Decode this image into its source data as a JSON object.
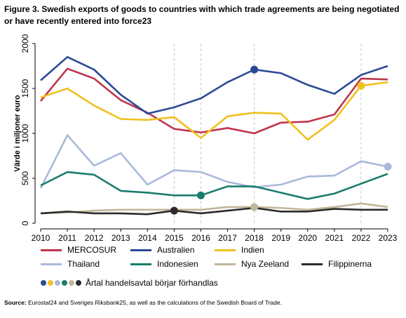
{
  "title": "Figure 3. Swedish exports of goods to countries with which trade agreements are being negotiated or have recently entered into force23",
  "source_label": "Source:",
  "source_text": " Eurostat24 and Sveriges Riksbank25, as well as the calculations of the Swedish Board of Trade.",
  "chart_data": {
    "type": "line",
    "title": "",
    "xlabel": "",
    "ylabel": "Värde i miljoner euro",
    "x": [
      2010,
      2011,
      2012,
      2013,
      2014,
      2015,
      2016,
      2017,
      2018,
      2019,
      2020,
      2021,
      2022,
      2023
    ],
    "xlim": [
      2010,
      2023
    ],
    "ylim": [
      0,
      2000
    ],
    "yticks": [
      0,
      500,
      1000,
      1500,
      2000
    ],
    "vertical_gridlines_at": [
      2015,
      2016,
      2018,
      2022
    ],
    "legend_position": "bottom",
    "series": [
      {
        "name": "MERCOSUR",
        "color": "#c0354b",
        "values": [
          1360,
          1720,
          1610,
          1370,
          1230,
          1050,
          1010,
          1060,
          1000,
          1120,
          1130,
          1210,
          1610,
          1600
        ]
      },
      {
        "name": "Australien",
        "color": "#2a4a96",
        "values": [
          1590,
          1850,
          1710,
          1430,
          1220,
          1290,
          1390,
          1570,
          1710,
          1670,
          1540,
          1440,
          1650,
          1750
        ],
        "marker_year": 2018
      },
      {
        "name": "Indien",
        "color": "#f0c020",
        "values": [
          1400,
          1500,
          1310,
          1160,
          1150,
          1180,
          950,
          1190,
          1230,
          1220,
          930,
          1150,
          1530,
          1570
        ],
        "marker_year": 2022
      },
      {
        "name": "Thailand",
        "color": "#a9b9dc",
        "values": [
          390,
          980,
          640,
          780,
          430,
          590,
          570,
          460,
          400,
          430,
          520,
          530,
          690,
          630
        ],
        "marker_year": 2023
      },
      {
        "name": "Indonesien",
        "color": "#1c7d6c",
        "values": [
          420,
          570,
          540,
          360,
          340,
          310,
          310,
          410,
          410,
          340,
          270,
          330,
          440,
          550
        ],
        "marker_year": 2016
      },
      {
        "name": "Nya Zeeland",
        "color": "#c1b59a",
        "values": [
          110,
          120,
          140,
          150,
          150,
          150,
          150,
          180,
          180,
          170,
          150,
          180,
          220,
          180
        ],
        "marker_year": 2018
      },
      {
        "name": "Filippinerna",
        "color": "#2b2b2b",
        "values": [
          110,
          130,
          110,
          110,
          100,
          140,
          110,
          140,
          170,
          130,
          130,
          160,
          150,
          150
        ],
        "marker_year": 2015
      }
    ],
    "marker_legend": {
      "label": "Årtal handelsavtal börjar förhandlas",
      "colors": [
        "#2a4a96",
        "#f0c020",
        "#a9b9dc",
        "#1c7d6c",
        "#c1b59a",
        "#2b2b2b"
      ]
    }
  }
}
